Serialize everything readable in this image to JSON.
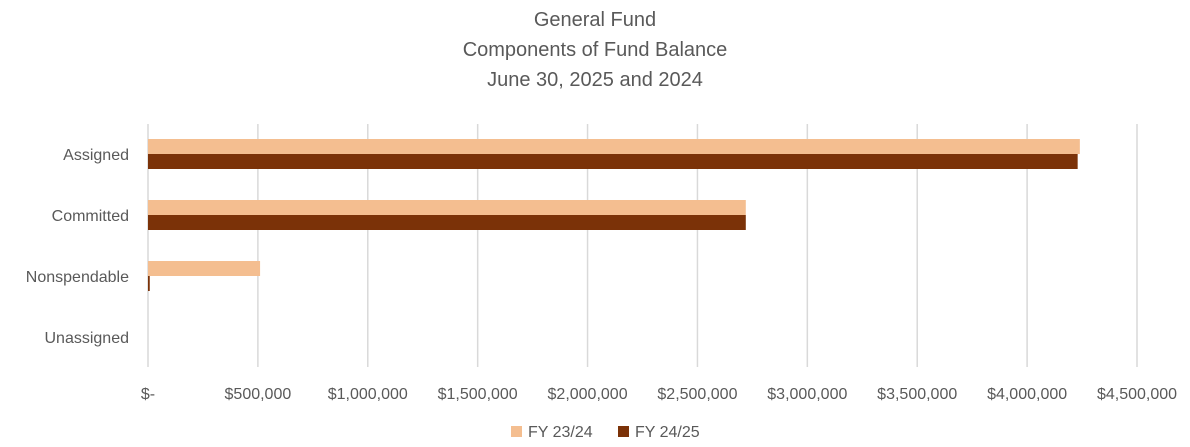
{
  "chart_data": {
    "type": "bar",
    "orientation": "horizontal",
    "title_lines": [
      "General Fund",
      "Components of Fund Balance",
      "June 30, 2025 and 2024"
    ],
    "categories": [
      "Assigned",
      "Committed",
      "Nonspendable",
      "Unassigned"
    ],
    "series": [
      {
        "name": "FY 23/24",
        "color": "#F4BE90",
        "values": [
          4240000,
          2720000,
          510000,
          0
        ]
      },
      {
        "name": "FY 24/25",
        "color": "#7B3208",
        "values": [
          4230000,
          2720000,
          8000,
          0
        ]
      }
    ],
    "xlim": [
      0,
      4500000
    ],
    "x_ticks": [
      0,
      500000,
      1000000,
      1500000,
      2000000,
      2500000,
      3000000,
      3500000,
      4000000,
      4500000
    ],
    "x_tick_labels": [
      "$-",
      "$500,000",
      "$1,000,000",
      "$1,500,000",
      "$2,000,000",
      "$2,500,000",
      "$3,000,000",
      "$3,500,000",
      "$4,000,000",
      "$4,500,000"
    ],
    "grid": "vertical",
    "legend_position": "bottom",
    "gridline_color": "#D9D9D9",
    "text_color": "#595959"
  }
}
